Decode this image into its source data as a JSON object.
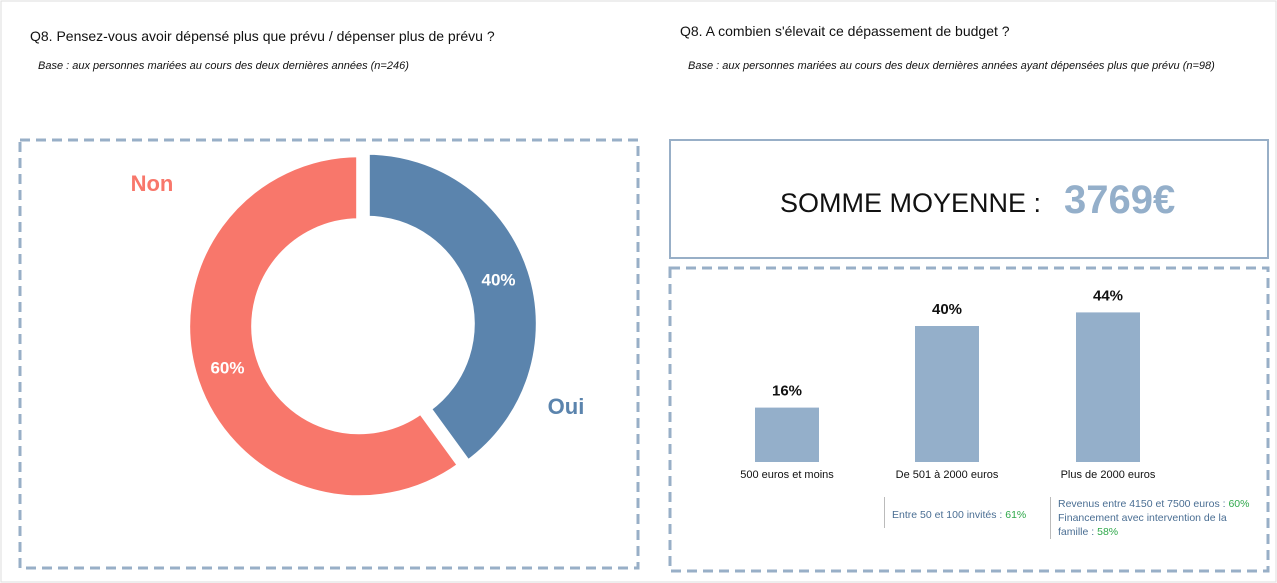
{
  "chart_data": [
    {
      "type": "pie",
      "donut": true,
      "title": "Q8. Pensez-vous avoir dépensé plus que prévu / dépenser plus de prévu ?",
      "subtitle": "Base : aux personnes mariées au cours des deux dernières années (n=246)",
      "categories": [
        "Oui",
        "Non"
      ],
      "values": [
        40,
        60
      ],
      "value_labels": [
        "40%",
        "60%"
      ],
      "colors": [
        "#5b84ad",
        "#f8776b"
      ]
    },
    {
      "type": "bar",
      "title": "Q8. A combien s'élevait ce dépassement de budget ?",
      "subtitle": "Base : aux personnes mariées au cours des deux dernières années ayant dépensées plus que prévu  (n=98)",
      "summary_label": "SOMME MOYENNE :",
      "summary_value": "3769€",
      "categories": [
        "500 euros et moins",
        "De 501 à 2000 euros",
        "Plus de 2000 euros"
      ],
      "values": [
        16,
        40,
        44
      ],
      "value_labels": [
        "16%",
        "40%",
        "44%"
      ],
      "color": "#94afca",
      "annotations": [
        [
          {
            "text": "Entre 50 et 100 invités :",
            "value": "61%"
          }
        ],
        [
          {
            "text": "Revenus entre 4150 et 7500 euros :",
            "value": "60%"
          },
          {
            "text": "Financement avec intervention de la famille :",
            "value": "58%"
          }
        ]
      ]
    }
  ]
}
